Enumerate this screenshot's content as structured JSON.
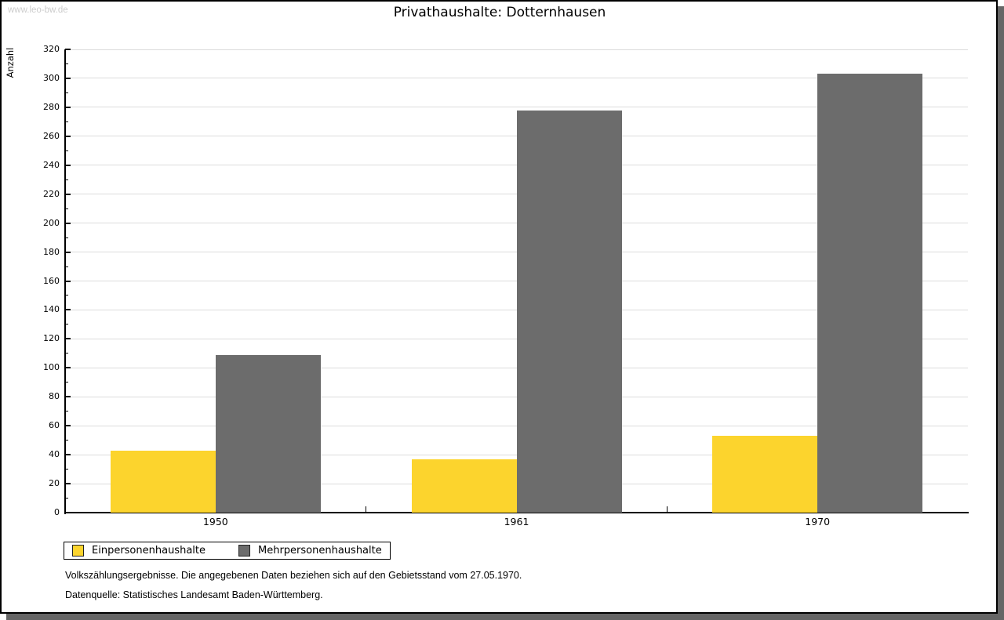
{
  "page": {
    "watermark": "www.leo-bw.de",
    "title": "Privathaushalte: Dotternhausen",
    "footnotes": {
      "line1": "Volkszählungsergebnisse. Die angegebenen Daten beziehen sich auf den Gebietsstand vom 27.05.1970.",
      "line2": "Datenquelle: Statistisches Landesamt Baden-Württemberg."
    }
  },
  "colors": {
    "bar_yellow": "#FCD42D",
    "bar_gray": "#6C6C6C",
    "gridline": "#DCDCDC",
    "axis": "#000000",
    "shadow": "#666666",
    "watermark": "#CCCCCC"
  },
  "chart_data": {
    "type": "bar",
    "title": "Privathaushalte: Dotternhausen",
    "xlabel": "",
    "ylabel": "Anzahl",
    "categories": [
      "1950",
      "1961",
      "1970"
    ],
    "series": [
      {
        "name": "Einpersonenhaushalte",
        "color": "#FCD42D",
        "values": [
          43,
          37,
          53
        ]
      },
      {
        "name": "Mehrpersonenhaushalte",
        "color": "#6C6C6C",
        "values": [
          109,
          278,
          303
        ]
      }
    ],
    "ylim": [
      0,
      320
    ],
    "y_major_step": 20,
    "y_minor_step": 10,
    "grid": true,
    "legend_position": "bottom-left"
  }
}
